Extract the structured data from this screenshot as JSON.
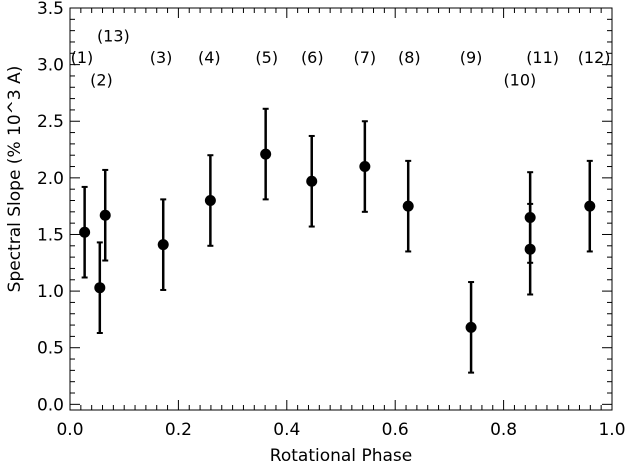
{
  "chart_data": {
    "type": "scatter",
    "title": "",
    "xlabel": "Rotational Phase",
    "ylabel": "Spectral Slope (% 10^3 A)",
    "xlim": [
      0.0,
      1.0
    ],
    "ylim": [
      -0.05,
      3.5
    ],
    "xticks": [
      0.0,
      0.2,
      0.4,
      0.6,
      0.8,
      1.0
    ],
    "xtick_labels": [
      "0.0",
      "0.2",
      "0.4",
      "0.6",
      "0.8",
      "1.0"
    ],
    "yticks": [
      0.0,
      0.5,
      1.0,
      1.5,
      2.0,
      2.5,
      3.0,
      3.5
    ],
    "ytick_labels": [
      "0.0",
      "0.5",
      "1.0",
      "1.5",
      "2.0",
      "2.5",
      "3.0",
      "3.5"
    ],
    "grid": false,
    "series": [
      {
        "marker": "filled-circle",
        "color": "#000000",
        "points": [
          {
            "x": 0.027,
            "y": 1.52,
            "err": 0.4
          },
          {
            "x": 0.055,
            "y": 1.03,
            "err": 0.4
          },
          {
            "x": 0.065,
            "y": 1.67,
            "err": 0.4
          },
          {
            "x": 0.172,
            "y": 1.41,
            "err": 0.4
          },
          {
            "x": 0.259,
            "y": 1.8,
            "err": 0.4
          },
          {
            "x": 0.361,
            "y": 2.21,
            "err": 0.4
          },
          {
            "x": 0.446,
            "y": 1.97,
            "err": 0.4
          },
          {
            "x": 0.544,
            "y": 2.1,
            "err": 0.4
          },
          {
            "x": 0.624,
            "y": 1.75,
            "err": 0.4
          },
          {
            "x": 0.74,
            "y": 0.68,
            "err": 0.4
          },
          {
            "x": 0.849,
            "y": 1.37,
            "err": 0.4
          },
          {
            "x": 0.849,
            "y": 1.65,
            "err": 0.4
          },
          {
            "x": 0.959,
            "y": 1.75,
            "err": 0.4
          }
        ]
      }
    ],
    "annotations": [
      {
        "text": "(1)",
        "x": 0.022,
        "y": 3.06
      },
      {
        "text": "(13)",
        "x": 0.08,
        "y": 3.25
      },
      {
        "text": "(2)",
        "x": 0.058,
        "y": 2.86
      },
      {
        "text": "(3)",
        "x": 0.168,
        "y": 3.06
      },
      {
        "text": "(4)",
        "x": 0.257,
        "y": 3.06
      },
      {
        "text": "(5)",
        "x": 0.363,
        "y": 3.06
      },
      {
        "text": "(6)",
        "x": 0.447,
        "y": 3.06
      },
      {
        "text": "(7)",
        "x": 0.544,
        "y": 3.06
      },
      {
        "text": "(8)",
        "x": 0.626,
        "y": 3.06
      },
      {
        "text": "(9)",
        "x": 0.74,
        "y": 3.06
      },
      {
        "text": "(11)",
        "x": 0.872,
        "y": 3.06
      },
      {
        "text": "(10)",
        "x": 0.83,
        "y": 2.86
      },
      {
        "text": "(12)",
        "x": 0.967,
        "y": 3.06
      }
    ]
  }
}
